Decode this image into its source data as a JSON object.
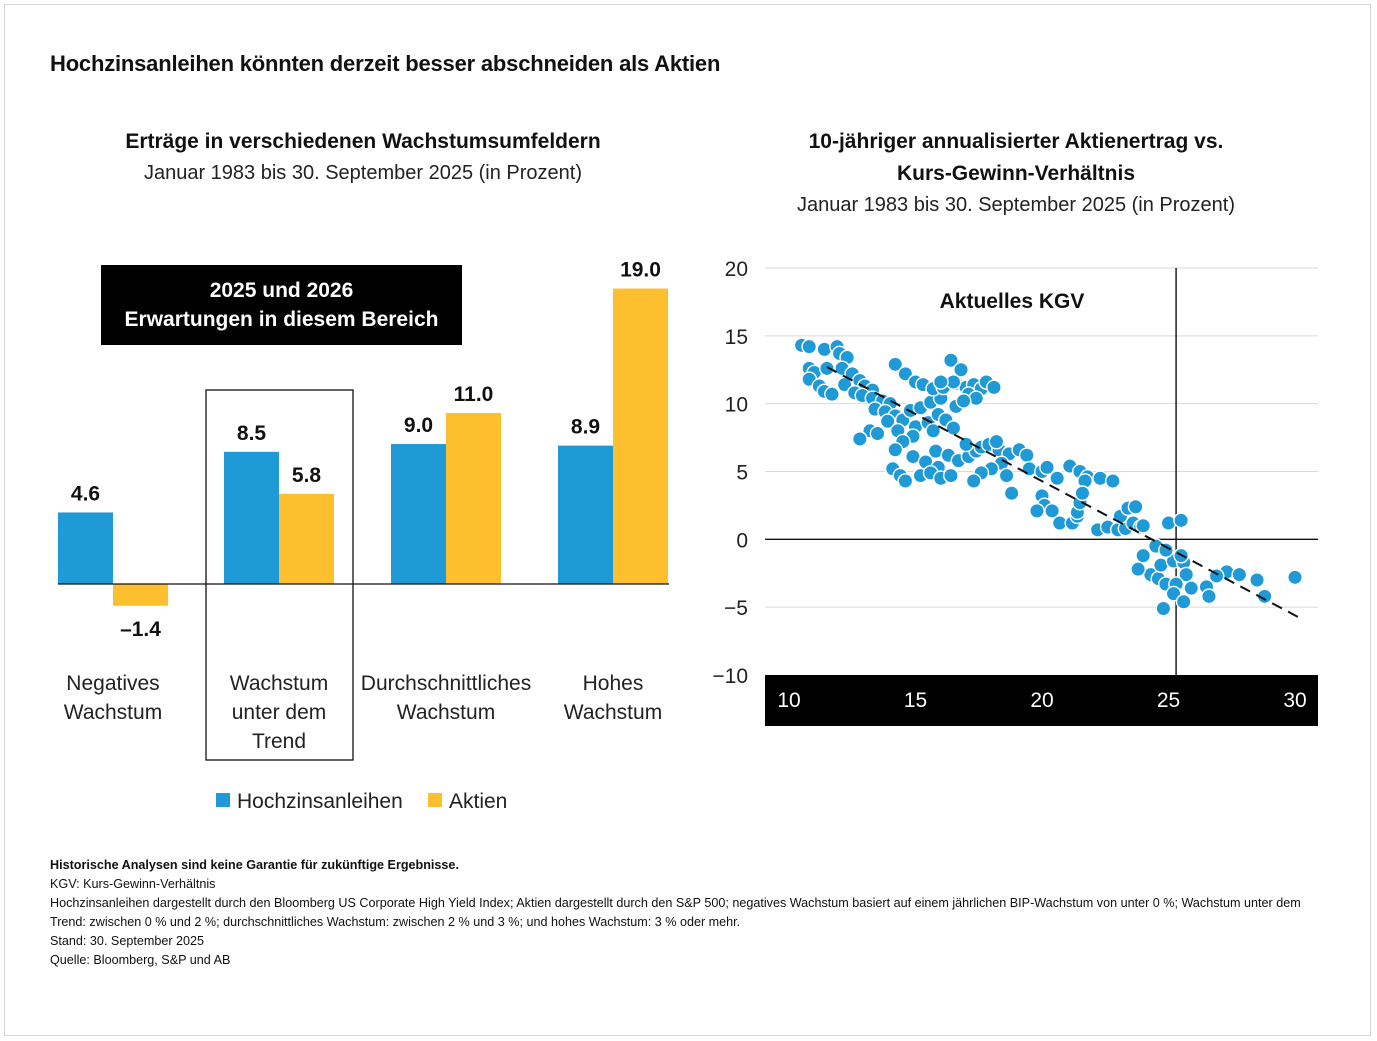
{
  "title": "Hochzinsanleihen könnten derzeit besser abschneiden als Aktien",
  "left_chart": {
    "title": "Erträge in verschiedenen Wachstumsumfeldern",
    "subtitle": "Januar 1983 bis 30. September 2025 (in Prozent)",
    "callout_line1": "2025 und 2026",
    "callout_line2": "Erwartungen in diesem Bereich"
  },
  "right_chart": {
    "title_line1": "10-jähriger annualisierter Aktienertrag vs.",
    "title_line2": "Kurs-Gewinn-Verhältnis",
    "subtitle": "Januar 1983 bis 30. September 2025 (in Prozent)",
    "marker_label": "Aktuelles KGV"
  },
  "colors": {
    "high_yield": "#1f9ad6",
    "equities": "#fdbf2d",
    "callout_bg": "#000000",
    "axis_band": "#000000"
  },
  "chart_data": [
    {
      "type": "bar",
      "title": "Erträge in verschiedenen Wachstumsumfeldern",
      "subtitle": "Januar 1983 bis 30. September 2025 (in Prozent)",
      "categories": [
        [
          "Negatives",
          "Wachstum"
        ],
        [
          "Wachstum",
          "unter dem",
          "Trend"
        ],
        [
          "Durchschnittliches",
          "Wachstum"
        ],
        [
          "Hohes",
          "Wachstum"
        ]
      ],
      "series": [
        {
          "name": "Hochzinsanleihen",
          "values": [
            4.6,
            8.5,
            9.0,
            8.9
          ],
          "labels": [
            "4.6",
            "8.5",
            "9.0",
            "8.9"
          ]
        },
        {
          "name": "Aktien",
          "values": [
            -1.4,
            5.8,
            11.0,
            19.0
          ],
          "labels": [
            "–1.4",
            "5.8",
            "11.0",
            "19.0"
          ]
        }
      ],
      "highlighted_category": 1,
      "legend_position": "bottom",
      "grid": false
    },
    {
      "type": "scatter",
      "title": "10-jähriger annualisierter Aktienertrag vs. Kurs-Gewinn-Verhältnis",
      "subtitle": "Januar 1983 bis 30. September 2025 (in Prozent)",
      "xlim": [
        10,
        30
      ],
      "ylim": [
        -10,
        20
      ],
      "x_ticks": [
        "10",
        "15",
        "20",
        "25",
        "30"
      ],
      "y_ticks": [
        "20",
        "15",
        "10",
        "5",
        "0",
        "−5",
        "−10"
      ],
      "grid": true,
      "reference_line": {
        "x": 25.3,
        "label": "Aktuelles KGV"
      },
      "trend_line": {
        "from": [
          11.5,
          12.7
        ],
        "to": [
          30.3,
          -5.9
        ],
        "style": "dashed"
      },
      "points": [
        [
          10.5,
          14.3
        ],
        [
          10.8,
          14.2
        ],
        [
          11.4,
          14.0
        ],
        [
          11.9,
          14.2
        ],
        [
          12.0,
          13.7
        ],
        [
          12.3,
          13.4
        ],
        [
          10.8,
          12.6
        ],
        [
          11.0,
          12.3
        ],
        [
          11.5,
          12.6
        ],
        [
          12.1,
          12.6
        ],
        [
          12.5,
          12.2
        ],
        [
          12.8,
          11.7
        ],
        [
          13.0,
          11.3
        ],
        [
          13.3,
          11.0
        ],
        [
          10.8,
          11.8
        ],
        [
          11.2,
          11.3
        ],
        [
          11.4,
          10.9
        ],
        [
          11.7,
          10.7
        ],
        [
          12.2,
          11.4
        ],
        [
          12.6,
          10.8
        ],
        [
          12.9,
          10.6
        ],
        [
          13.3,
          10.4
        ],
        [
          13.7,
          10.2
        ],
        [
          14.0,
          10.0
        ],
        [
          13.4,
          9.6
        ],
        [
          13.8,
          9.4
        ],
        [
          14.2,
          9.1
        ],
        [
          14.5,
          8.8
        ],
        [
          13.9,
          8.7
        ],
        [
          13.2,
          8.0
        ],
        [
          12.8,
          7.4
        ],
        [
          13.5,
          7.8
        ],
        [
          14.3,
          8.0
        ],
        [
          15.0,
          8.3
        ],
        [
          15.5,
          8.6
        ],
        [
          14.8,
          9.5
        ],
        [
          15.2,
          9.7
        ],
        [
          15.6,
          10.1
        ],
        [
          16.0,
          10.4
        ],
        [
          14.2,
          12.9
        ],
        [
          14.6,
          12.2
        ],
        [
          15.0,
          11.6
        ],
        [
          15.3,
          11.4
        ],
        [
          15.7,
          11.1
        ],
        [
          16.1,
          11.2
        ],
        [
          16.6,
          11.5
        ],
        [
          17.0,
          11.2
        ],
        [
          17.3,
          11.4
        ],
        [
          17.6,
          11.1
        ],
        [
          16.4,
          13.2
        ],
        [
          16.8,
          12.5
        ],
        [
          17.1,
          10.7
        ],
        [
          17.4,
          10.4
        ],
        [
          17.8,
          11.6
        ],
        [
          18.1,
          11.2
        ],
        [
          16.5,
          11.6
        ],
        [
          16.0,
          11.6
        ],
        [
          16.6,
          9.8
        ],
        [
          16.9,
          10.2
        ],
        [
          15.9,
          9.2
        ],
        [
          16.2,
          8.8
        ],
        [
          16.5,
          8.2
        ],
        [
          15.7,
          8.0
        ],
        [
          14.9,
          7.6
        ],
        [
          14.5,
          7.2
        ],
        [
          14.2,
          6.6
        ],
        [
          14.9,
          6.1
        ],
        [
          15.4,
          5.7
        ],
        [
          15.9,
          5.3
        ],
        [
          14.1,
          5.2
        ],
        [
          14.4,
          4.7
        ],
        [
          14.6,
          4.3
        ],
        [
          15.2,
          4.7
        ],
        [
          15.6,
          4.9
        ],
        [
          16.0,
          4.5
        ],
        [
          16.4,
          4.7
        ],
        [
          15.8,
          6.5
        ],
        [
          16.3,
          6.2
        ],
        [
          16.7,
          5.8
        ],
        [
          17.1,
          6.1
        ],
        [
          17.4,
          6.5
        ],
        [
          17.0,
          7.0
        ],
        [
          17.6,
          6.8
        ],
        [
          17.9,
          7.0
        ],
        [
          18.3,
          6.6
        ],
        [
          18.7,
          6.3
        ],
        [
          19.1,
          6.6
        ],
        [
          19.4,
          6.2
        ],
        [
          18.2,
          7.2
        ],
        [
          18.4,
          5.6
        ],
        [
          18.0,
          5.2
        ],
        [
          17.6,
          4.9
        ],
        [
          17.3,
          4.3
        ],
        [
          18.6,
          4.7
        ],
        [
          18.8,
          3.4
        ],
        [
          19.5,
          5.2
        ],
        [
          20.0,
          5.0
        ],
        [
          20.2,
          5.3
        ],
        [
          21.1,
          5.4
        ],
        [
          21.5,
          5.0
        ],
        [
          21.8,
          4.6
        ],
        [
          21.7,
          4.3
        ],
        [
          22.3,
          4.5
        ],
        [
          22.8,
          4.3
        ],
        [
          20.6,
          4.5
        ],
        [
          20.0,
          3.2
        ],
        [
          20.1,
          2.5
        ],
        [
          20.4,
          2.1
        ],
        [
          19.8,
          2.1
        ],
        [
          20.7,
          1.2
        ],
        [
          21.2,
          1.2
        ],
        [
          21.4,
          1.7
        ],
        [
          21.4,
          2.0
        ],
        [
          21.5,
          2.7
        ],
        [
          21.6,
          3.4
        ],
        [
          22.2,
          0.7
        ],
        [
          22.6,
          0.9
        ],
        [
          23.0,
          0.7
        ],
        [
          23.3,
          0.8
        ],
        [
          23.6,
          1.2
        ],
        [
          23.9,
          0.9
        ],
        [
          23.1,
          1.7
        ],
        [
          23.4,
          2.3
        ],
        [
          23.7,
          2.4
        ],
        [
          24.0,
          1.0
        ],
        [
          24.0,
          -1.2
        ],
        [
          24.3,
          -2.6
        ],
        [
          24.6,
          -2.9
        ],
        [
          24.9,
          -3.3
        ],
        [
          24.7,
          -1.9
        ],
        [
          25.2,
          -1.6
        ],
        [
          25.6,
          -1.7
        ],
        [
          25.7,
          -2.6
        ],
        [
          25.9,
          -3.6
        ],
        [
          25.3,
          -3.3
        ],
        [
          25.2,
          -4.0
        ],
        [
          24.5,
          -0.5
        ],
        [
          24.9,
          -0.8
        ],
        [
          25.5,
          -1.2
        ],
        [
          25.0,
          1.2
        ],
        [
          25.5,
          1.4
        ],
        [
          25.6,
          -4.6
        ],
        [
          24.8,
          -5.1
        ],
        [
          26.5,
          -3.5
        ],
        [
          26.6,
          -4.2
        ],
        [
          27.3,
          -2.4
        ],
        [
          27.8,
          -2.6
        ],
        [
          28.5,
          -3.0
        ],
        [
          28.8,
          -4.2
        ],
        [
          30.0,
          -2.8
        ],
        [
          26.9,
          -2.7
        ],
        [
          23.8,
          -2.2
        ]
      ]
    }
  ],
  "left_legend": [
    {
      "name": "Hochzinsanleihen"
    },
    {
      "name": "Aktien"
    }
  ],
  "notes": {
    "disclaimer": "Historische Analysen sind keine Garantie für zukünftige Ergebnisse.",
    "abbr": "KGV: Kurs-Gewinn-Verhältnis",
    "method": "Hochzinsanleihen dargestellt durch den Bloomberg US Corporate High Yield Index; Aktien dargestellt durch den S&P 500; negatives Wachstum basiert auf einem jährlichen BIP-Wachstum von unter 0 %; Wachstum unter dem Trend: zwischen 0 % und 2 %; durchschnittliches Wachstum: zwischen 2 % und 3 %; und hohes Wachstum: 3 % oder mehr.",
    "as_of": "Stand: 30. September 2025",
    "source": "Quelle: Bloomberg, S&P und AB"
  }
}
